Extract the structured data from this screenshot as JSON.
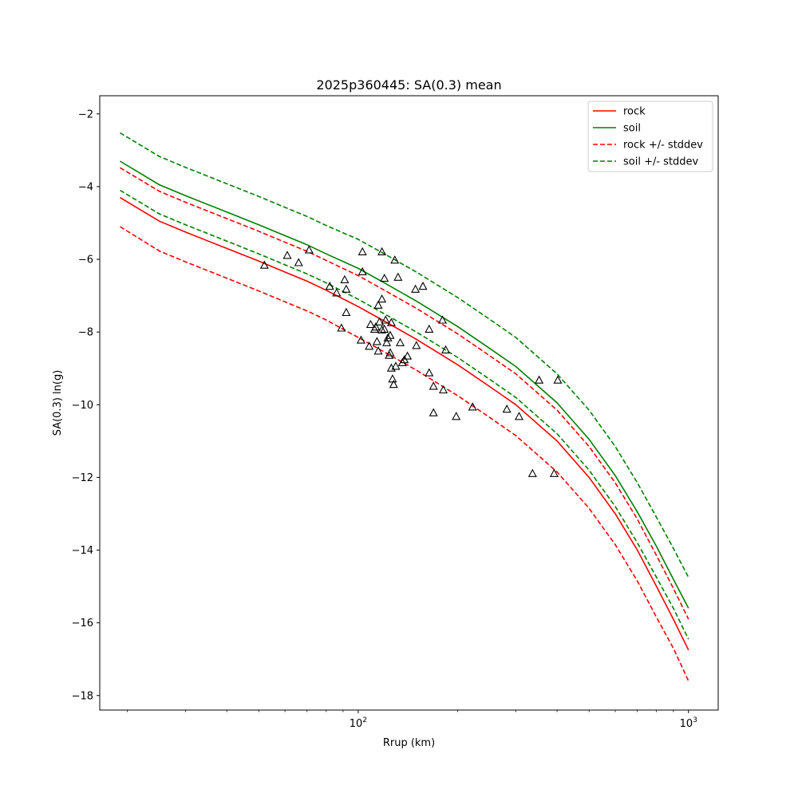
{
  "chart_data": {
    "type": "scatter",
    "title": "2025p360445: SA(0.3) mean",
    "xlabel": "Rrup (km)",
    "ylabel": "SA(0.3) ln(g)",
    "xscale": "log",
    "xlim": [
      16.5,
      1230
    ],
    "ylim": [
      -18.4,
      -1.5
    ],
    "x_tick_labels": [
      {
        "value": 100,
        "base": "10",
        "exp": "2"
      },
      {
        "value": 1000,
        "base": "10",
        "exp": "3"
      }
    ],
    "y_ticks": [
      -2,
      -4,
      -6,
      -8,
      -10,
      -12,
      -14,
      -16,
      -18
    ],
    "y_tick_labels": [
      "−2",
      "−4",
      "−6",
      "−8",
      "−10",
      "−12",
      "−14",
      "−16",
      "−18"
    ],
    "grid": false,
    "legend_position": "top-right",
    "colors": {
      "rock": "#ff0000",
      "soil": "#008000",
      "marker": "#000000"
    },
    "series": [
      {
        "name": "rock",
        "style": "solid",
        "color": "#ff0000",
        "x": [
          19,
          25,
          30,
          40,
          50,
          60,
          70,
          80,
          100,
          120,
          150,
          200,
          250,
          300,
          400,
          500,
          600,
          700,
          800,
          900,
          1000
        ],
        "y": [
          -4.3,
          -4.95,
          -5.25,
          -5.7,
          -6.05,
          -6.35,
          -6.6,
          -6.85,
          -7.3,
          -7.7,
          -8.2,
          -8.9,
          -9.5,
          -10.0,
          -11.0,
          -12.0,
          -13.0,
          -14.0,
          -15.0,
          -15.9,
          -16.75
        ]
      },
      {
        "name": "soil",
        "style": "solid",
        "color": "#008000",
        "x": [
          19,
          25,
          30,
          40,
          50,
          60,
          70,
          80,
          100,
          120,
          150,
          200,
          250,
          300,
          400,
          500,
          600,
          700,
          800,
          900,
          1000
        ],
        "y": [
          -3.3,
          -3.95,
          -4.25,
          -4.7,
          -5.05,
          -5.35,
          -5.6,
          -5.85,
          -6.25,
          -6.65,
          -7.15,
          -7.85,
          -8.45,
          -8.95,
          -9.95,
          -10.95,
          -11.95,
          -12.95,
          -13.9,
          -14.8,
          -15.6
        ]
      },
      {
        "name": "rock +/- stddev",
        "style": "dashed",
        "color": "#ff0000",
        "x": [
          19,
          25,
          30,
          40,
          50,
          60,
          70,
          80,
          100,
          120,
          150,
          200,
          250,
          300,
          400,
          500,
          600,
          700,
          800,
          900,
          1000
        ],
        "y": [
          -3.48,
          -4.13,
          -4.43,
          -4.88,
          -5.23,
          -5.53,
          -5.78,
          -6.03,
          -6.45,
          -6.85,
          -7.35,
          -8.05,
          -8.65,
          -9.15,
          -10.15,
          -11.15,
          -12.15,
          -13.15,
          -14.15,
          -15.05,
          -15.9
        ]
      },
      {
        "name": "rock - stddev",
        "legend": false,
        "style": "dashed",
        "color": "#ff0000",
        "x": [
          19,
          25,
          30,
          40,
          50,
          60,
          70,
          80,
          100,
          120,
          150,
          200,
          250,
          300,
          400,
          500,
          600,
          700,
          800,
          900,
          1000
        ],
        "y": [
          -5.1,
          -5.77,
          -6.07,
          -6.52,
          -6.87,
          -7.17,
          -7.42,
          -7.67,
          -8.15,
          -8.55,
          -9.05,
          -9.75,
          -10.35,
          -10.85,
          -11.85,
          -12.85,
          -13.85,
          -14.85,
          -15.85,
          -16.7,
          -17.6
        ]
      },
      {
        "name": "soil +/- stddev",
        "style": "dashed",
        "color": "#008000",
        "x": [
          19,
          25,
          30,
          40,
          50,
          60,
          70,
          80,
          100,
          120,
          150,
          200,
          250,
          300,
          400,
          500,
          600,
          700,
          800,
          900,
          1000
        ],
        "y": [
          -2.52,
          -3.17,
          -3.47,
          -3.92,
          -4.27,
          -4.57,
          -4.82,
          -5.07,
          -5.45,
          -5.85,
          -6.35,
          -7.05,
          -7.65,
          -8.15,
          -9.15,
          -10.15,
          -11.15,
          -12.15,
          -13.1,
          -13.95,
          -14.75
        ]
      },
      {
        "name": "soil - stddev",
        "legend": false,
        "style": "dashed",
        "color": "#008000",
        "x": [
          19,
          25,
          30,
          40,
          50,
          60,
          70,
          80,
          100,
          120,
          150,
          200,
          250,
          300,
          400,
          500,
          600,
          700,
          800,
          900,
          1000
        ],
        "y": [
          -4.1,
          -4.75,
          -5.05,
          -5.5,
          -5.85,
          -6.15,
          -6.4,
          -6.65,
          -7.1,
          -7.5,
          -8.0,
          -8.7,
          -9.3,
          -9.8,
          -10.8,
          -11.8,
          -12.8,
          -13.8,
          -14.75,
          -15.6,
          -16.45
        ]
      }
    ],
    "observations": {
      "marker": "triangle",
      "x": [
        52,
        61,
        66,
        71,
        82,
        86,
        89,
        91,
        92,
        92,
        102,
        103,
        103,
        108,
        109,
        112,
        113,
        114,
        115,
        115,
        116,
        118,
        118,
        118,
        120,
        120,
        121,
        122,
        123,
        124,
        125,
        125,
        126,
        126,
        127,
        128,
        129,
        130,
        132,
        134,
        136,
        138,
        141,
        149,
        150,
        157,
        164,
        164,
        169,
        169,
        180,
        181,
        184,
        198,
        222,
        282,
        307,
        337,
        353,
        392,
        402
      ],
      "y": [
        -6.17,
        -5.9,
        -6.1,
        -5.75,
        -6.75,
        -6.93,
        -7.9,
        -6.57,
        -6.83,
        -7.47,
        -8.23,
        -6.35,
        -5.8,
        -8.4,
        -7.8,
        -7.93,
        -7.87,
        -8.27,
        -7.27,
        -8.53,
        -7.73,
        -7.1,
        -7.95,
        -5.8,
        -7.93,
        -6.53,
        -7.68,
        -8.3,
        -8.17,
        -8.65,
        -8.58,
        -8.1,
        -7.75,
        -9.0,
        -9.3,
        -9.45,
        -6.03,
        -8.95,
        -6.5,
        -8.3,
        -8.85,
        -8.77,
        -8.67,
        -6.83,
        -8.38,
        -6.75,
        -7.93,
        -9.13,
        -9.5,
        -10.23,
        -7.68,
        -9.6,
        -8.5,
        -10.33,
        -10.07,
        -10.13,
        -10.33,
        -11.9,
        -9.33,
        -11.9,
        -9.33
      ]
    },
    "legend": [
      "rock",
      "soil",
      "rock +/- stddev",
      "soil +/- stddev"
    ]
  }
}
